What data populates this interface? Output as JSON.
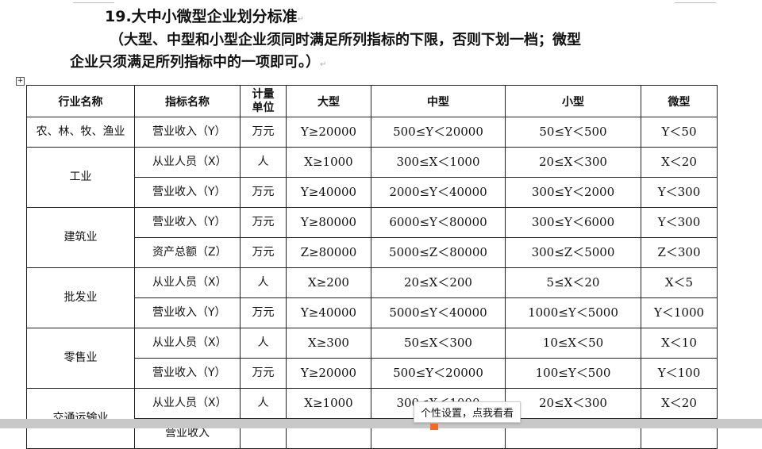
{
  "title": "19.大中小微型企业划分标准",
  "note_line1": "（大型、中型和小型企业须同时满足所列指标的下限，否则下划一档；微型",
  "note_line2": "企业只须满足所列指标中的一项即可。）",
  "headers": [
    "行业名称",
    "指标名称",
    "计量单位",
    "大型",
    "中型",
    "小型",
    "微型"
  ],
  "rows": [
    {
      "industry": "农、林、牧、渔业",
      "span": 1,
      "indicator": "营业收入（Y）",
      "unit": "万元",
      "large": "Y≥20000",
      "medium": "500≤Y＜20000",
      "small": "50≤Y＜500",
      "micro": "Y＜50"
    },
    {
      "industry": "工业",
      "span": 2,
      "indicator": "从业人员（X）",
      "unit": "人",
      "large": "X≥1000",
      "medium": "300≤X＜1000",
      "small": "20≤X＜300",
      "micro": "X＜20"
    },
    {
      "indicator": "营业收入（Y）",
      "unit": "万元",
      "large": "Y≥40000",
      "medium": "2000≤Y＜40000",
      "small": "300≤Y＜2000",
      "micro": "Y＜300"
    },
    {
      "industry": "建筑业",
      "span": 2,
      "indicator": "营业收入（Y）",
      "unit": "万元",
      "large": "Y≥80000",
      "medium": "6000≤Y＜80000",
      "small": "300≤Y＜6000",
      "micro": "Y＜300"
    },
    {
      "indicator": "资产总额（Z）",
      "unit": "万元",
      "large": "Z≥80000",
      "medium": "5000≤Z＜80000",
      "small": "300≤Z＜5000",
      "micro": "Z＜300"
    },
    {
      "industry": "批发业",
      "span": 2,
      "indicator": "从业人员（X）",
      "unit": "人",
      "large": "X≥200",
      "medium": "20≤X＜200",
      "small": "5≤X＜20",
      "micro": "X＜5"
    },
    {
      "indicator": "营业收入（Y）",
      "unit": "万元",
      "large": "Y≥40000",
      "medium": "5000≤Y＜40000",
      "small": "1000≤Y＜5000",
      "micro": "Y＜1000"
    },
    {
      "industry": "零售业",
      "span": 2,
      "indicator": "从业人员（X）",
      "unit": "人",
      "large": "X≥300",
      "medium": "50≤X＜300",
      "small": "10≤X＜50",
      "micro": "X＜10"
    },
    {
      "indicator": "营业收入（Y）",
      "unit": "万元",
      "large": "Y≥20000",
      "medium": "500≤Y＜20000",
      "small": "100≤Y＜500",
      "micro": "Y＜100"
    },
    {
      "industry": "交通运输业",
      "span": 2,
      "indicator": "从业人员（X）",
      "unit": "人",
      "large": "X≥1000",
      "medium": "300≤X＜1000",
      "small": "20≤X＜300",
      "micro": "X＜20"
    },
    {
      "indicator": "营业收入",
      "unit": "",
      "large": "",
      "medium": "",
      "small": "",
      "micro": ""
    }
  ],
  "tooltip": "个性设置，点我看看"
}
